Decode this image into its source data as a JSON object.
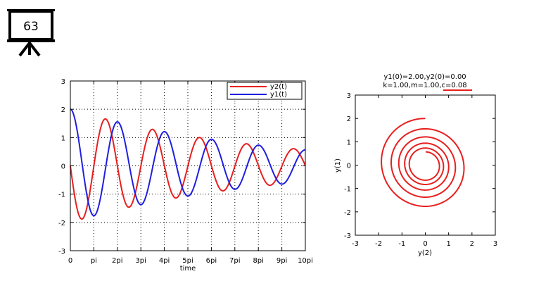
{
  "slide_number": "63",
  "icons": {
    "badge": "presentation-board-icon"
  },
  "colors": {
    "y1": "#1f1fe0",
    "y2": "#e81f1f"
  },
  "chart_data": [
    {
      "type": "line",
      "xlabel": "time",
      "ylabel": "",
      "xlim": [
        0,
        31.4159
      ],
      "ylim": [
        -3,
        3
      ],
      "grid": true,
      "legend_position": "top-right",
      "xtick_labels": [
        "0",
        "pi",
        "2pi",
        "3pi",
        "4pi",
        "5pi",
        "6pi",
        "7pi",
        "8pi",
        "9pi",
        "10pi"
      ],
      "ytick_labels": [
        "3",
        "2",
        "1",
        "0",
        "-1",
        "-2",
        "-3"
      ],
      "series": [
        {
          "name": "y2(t)",
          "color": "#e81f1f",
          "model": {
            "component": "y2",
            "y1_0": 2.0,
            "y2_0": 0.0,
            "k": 1.0,
            "m": 1.0,
            "c": 0.08
          }
        },
        {
          "name": "y1(t)",
          "color": "#1f1fe0",
          "model": {
            "component": "y1",
            "y1_0": 2.0,
            "y2_0": 0.0,
            "k": 1.0,
            "m": 1.0,
            "c": 0.08
          }
        }
      ]
    },
    {
      "type": "line",
      "title_line1": "y1(0)=2.00,y2(0)=0.00",
      "title_line2": "k=1.00,m=1.00,c=0.08",
      "xlabel": "y(2)",
      "ylabel": "y(1)",
      "xlim": [
        -3,
        3
      ],
      "ylim": [
        -3,
        3
      ],
      "grid": false,
      "xtick_labels": [
        "-3",
        "-2",
        "-1",
        "0",
        "1",
        "2",
        "3"
      ],
      "ytick_labels": [
        "3",
        "2",
        "1",
        "0",
        "-1",
        "-2",
        "-3"
      ],
      "series": [
        {
          "color": "#e81f1f",
          "model": {
            "phase_portrait": true,
            "x": "y2",
            "y": "y1",
            "y1_0": 2.0,
            "y2_0": 0.0,
            "k": 1.0,
            "m": 1.0,
            "c": 0.08
          }
        }
      ]
    }
  ]
}
